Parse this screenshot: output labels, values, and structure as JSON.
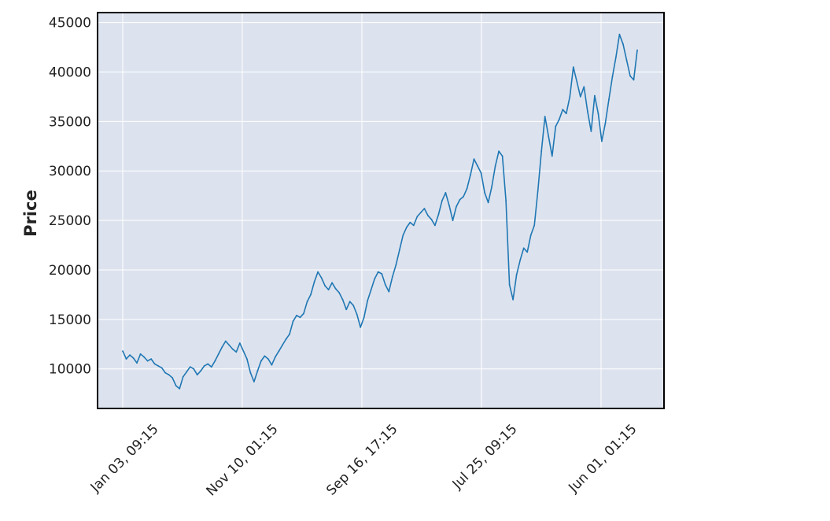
{
  "chart_data": {
    "type": "line",
    "title": "",
    "xlabel": "",
    "ylabel": "Price",
    "ylim": [
      6000,
      46000
    ],
    "yticks": [
      10000,
      15000,
      20000,
      25000,
      30000,
      35000,
      40000,
      45000
    ],
    "xtick_labels": [
      "Jan 03, 09:15",
      "Nov 10, 01:15",
      "Sep 16, 17:15",
      "Jul 25, 09:15",
      "Jun 01, 01:15"
    ],
    "grid": true,
    "colors": {
      "background": "#dde3ee",
      "line": "#1f77b4",
      "grid": "#ffffff",
      "frame": "#000000"
    },
    "series": [
      {
        "values": [
          11800,
          11000,
          11400,
          11100,
          10600,
          11500,
          11200,
          10800,
          11000,
          10500,
          10300,
          10100,
          9600,
          9400,
          9100,
          8300,
          8000,
          9200,
          9700,
          10200,
          10000,
          9400,
          9800,
          10300,
          10500,
          10200,
          10800,
          11500,
          12200,
          12800,
          12400,
          12000,
          11700,
          12600,
          11800,
          11000,
          9600,
          8700,
          9800,
          10800,
          11300,
          11000,
          10400,
          11200,
          11800,
          12400,
          13000,
          13500,
          14800,
          15400,
          15200,
          15600,
          16800,
          17500,
          18800,
          19800,
          19200,
          18400,
          18000,
          18700,
          18100,
          17700,
          17000,
          16000,
          16800,
          16400,
          15500,
          14200,
          15200,
          16900,
          18000,
          19100,
          19800,
          19600,
          18500,
          17800,
          19300,
          20500,
          22000,
          23500,
          24300,
          24800,
          24500,
          25400,
          25800,
          26200,
          25500,
          25100,
          24500,
          25600,
          27000,
          27800,
          26500,
          25000,
          26400,
          27100,
          27400,
          28200,
          29600,
          31200,
          30500,
          29800,
          27800,
          26800,
          28400,
          30500,
          32000,
          31500,
          27000,
          18500,
          17000,
          19500,
          21000,
          22200,
          21800,
          23500,
          24500,
          28000,
          32000,
          35500,
          33500,
          31500,
          34500,
          35200,
          36200,
          35800,
          37500,
          40500,
          39000,
          37500,
          38500,
          36000,
          34000,
          37600,
          35800,
          33000,
          34800,
          37200,
          39500,
          41500,
          43800,
          42800,
          41200,
          39600,
          39200,
          42200
        ]
      }
    ]
  }
}
